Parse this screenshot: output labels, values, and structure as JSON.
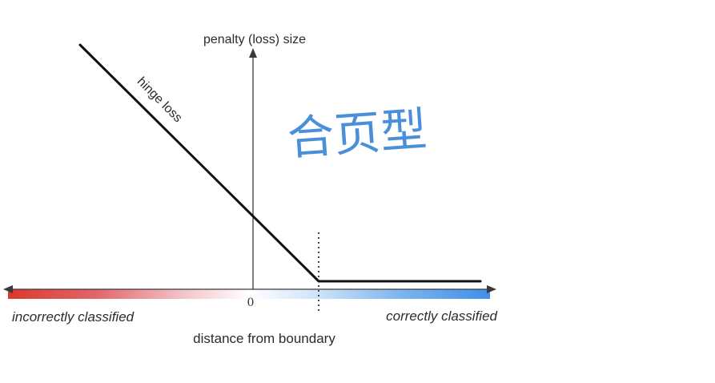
{
  "diagram": {
    "y_axis_label": "penalty (loss) size",
    "x_axis_label": "distance from boundary",
    "curve_label": "hinge loss",
    "origin_label": "0",
    "left_region_label": "incorrectly classified",
    "right_region_label": "correctly classified",
    "handwritten_note": "合页型"
  },
  "colors": {
    "axis": "#3a3a3a",
    "curve": "#111111",
    "incorrect_red": "#d93a2b",
    "correct_blue": "#3f8fe8",
    "handwriting_blue": "#4a90d9"
  }
}
